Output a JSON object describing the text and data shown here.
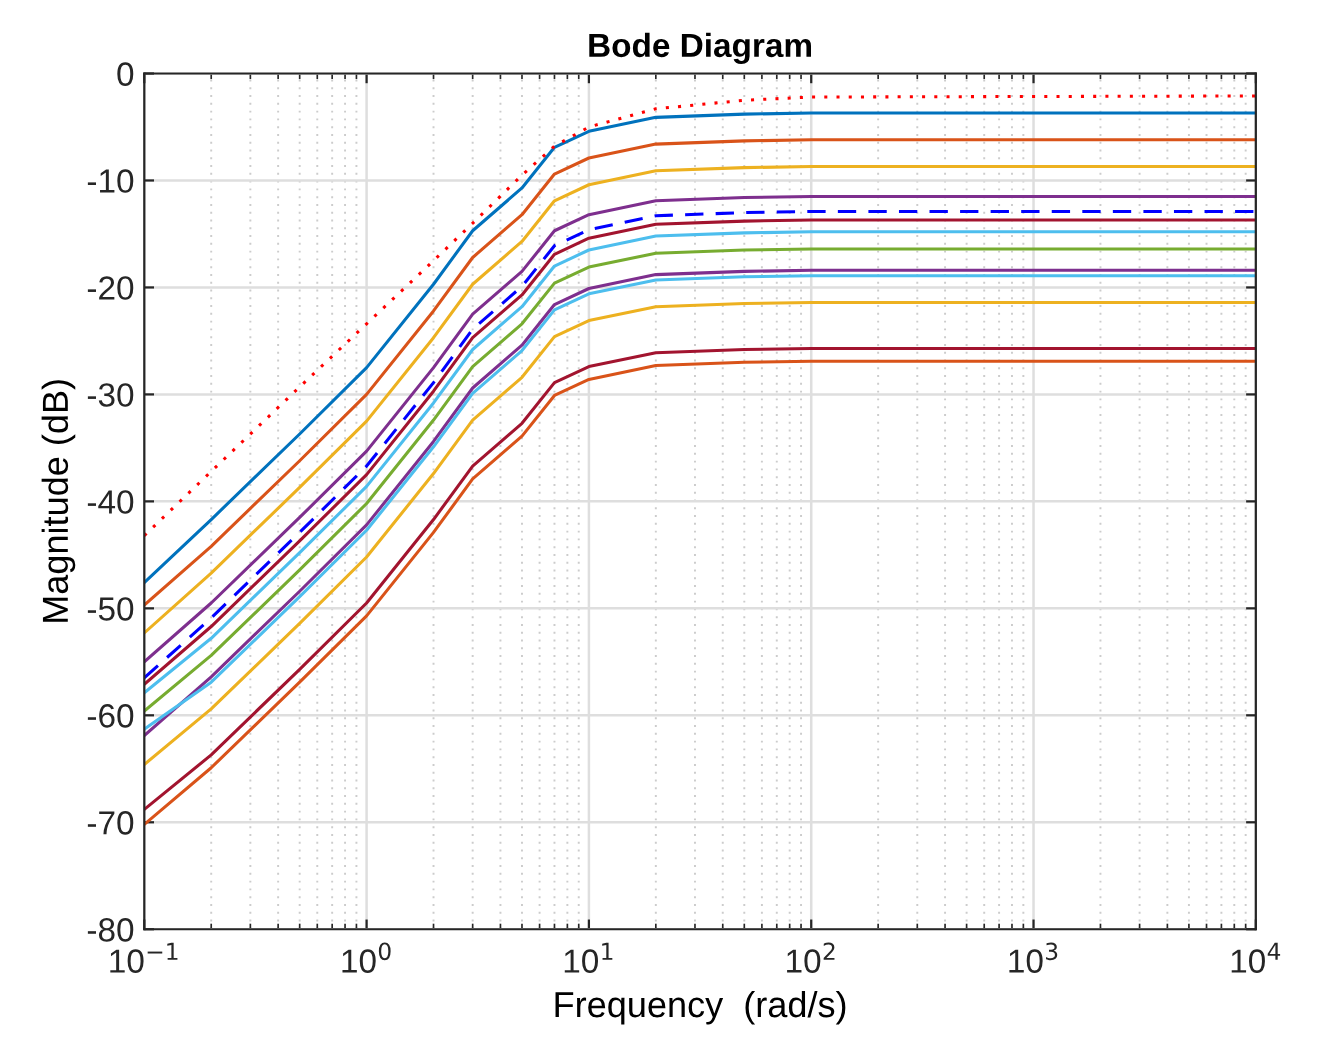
{
  "chart_data": {
    "type": "line",
    "title": "Bode Diagram",
    "xlabel": "Frequency  (rad/s)",
    "ylabel": "Magnitude (dB)",
    "log": "x",
    "grid": true,
    "marker": "none",
    "x": [
      0.1,
      0.2,
      0.5,
      1,
      2,
      3,
      5,
      7,
      10,
      20,
      50,
      100,
      10000
    ],
    "xlim": [
      0.1,
      10000
    ],
    "xticks": [
      {
        "value": 0.1,
        "label": "10$^{−1}$"
      },
      {
        "value": 1,
        "label": "10$^{0}$"
      },
      {
        "value": 10,
        "label": "10$^{1}$"
      },
      {
        "value": 100,
        "label": "10$^{2}$"
      },
      {
        "value": 1000,
        "label": "10$^{3}$"
      },
      {
        "value": 10000,
        "label": "10$^{4}$"
      }
    ],
    "ylim": [
      -80,
      0
    ],
    "yticks": [
      -80,
      -70,
      -60,
      -50,
      -40,
      -30,
      -20,
      -10,
      0
    ],
    "series": [
      {
        "color": "#0072bd",
        "line_style": "solid",
        "values": [
          -47.6,
          -41.7,
          -33.7,
          -27.5,
          -19.7,
          -14.7,
          -10.7,
          -6.9,
          -5.4,
          -4.1,
          -3.8,
          -3.7,
          -3.7
        ]
      },
      {
        "color": "#d95319",
        "line_style": "solid",
        "values": [
          -49.7,
          -44.2,
          -36.2,
          -30,
          -22.2,
          -17.2,
          -13.2,
          -9.4,
          -7.9,
          -6.6,
          -6.3,
          -6.2,
          -6.2
        ]
      },
      {
        "color": "#edb120",
        "line_style": "solid",
        "values": [
          -52.3,
          -46.7,
          -38.7,
          -32.5,
          -24.7,
          -19.7,
          -15.7,
          -11.9,
          -10.4,
          -9.1,
          -8.8,
          -8.7,
          -8.7
        ]
      },
      {
        "color": "#7e2f8e",
        "line_style": "solid",
        "values": [
          -55,
          -49.5,
          -41.5,
          -35.3,
          -27.5,
          -22.5,
          -18.5,
          -14.7,
          -13.2,
          -11.9,
          -11.6,
          -11.5,
          -11.5
        ]
      },
      {
        "color": "#a2142f",
        "line_style": "solid",
        "values": [
          -57.1,
          -51.7,
          -43.7,
          -37.5,
          -29.7,
          -24.7,
          -20.7,
          -16.9,
          -15.4,
          -14.1,
          -13.8,
          -13.7,
          -13.7
        ]
      },
      {
        "color": "#4dbeee",
        "line_style": "solid",
        "values": [
          -57.9,
          -52.8,
          -44.8,
          -38.6,
          -30.8,
          -25.8,
          -21.8,
          -18,
          -16.5,
          -15.2,
          -14.9,
          -14.8,
          -14.8
        ]
      },
      {
        "color": "#77ac30",
        "line_style": "solid",
        "values": [
          -59.6,
          -54.4,
          -46.4,
          -40.2,
          -32.4,
          -27.4,
          -23.4,
          -19.6,
          -18.1,
          -16.8,
          -16.5,
          -16.4,
          -16.4
        ]
      },
      {
        "color": "#7e2f8e",
        "line_style": "solid",
        "values": [
          -61.9,
          -56.4,
          -48.4,
          -42.2,
          -34.4,
          -29.4,
          -25.4,
          -21.6,
          -20.1,
          -18.8,
          -18.5,
          -18.4,
          -18.4
        ]
      },
      {
        "color": "#4dbeee",
        "line_style": "solid",
        "values": [
          -61.3,
          -56.9,
          -48.9,
          -42.7,
          -34.9,
          -29.9,
          -25.9,
          -22.1,
          -20.6,
          -19.3,
          -19,
          -18.9,
          -18.9
        ]
      },
      {
        "color": "#edb120",
        "line_style": "solid",
        "values": [
          -64.6,
          -59.4,
          -51.4,
          -45.2,
          -37.4,
          -32.4,
          -28.4,
          -24.6,
          -23.1,
          -21.8,
          -21.5,
          -21.4,
          -21.4
        ]
      },
      {
        "color": "#a2142f",
        "line_style": "solid",
        "values": [
          -68.8,
          -63.7,
          -55.7,
          -49.5,
          -41.7,
          -36.7,
          -32.7,
          -28.9,
          -27.4,
          -26.1,
          -25.8,
          -25.7,
          -25.7
        ]
      },
      {
        "color": "#d95319",
        "line_style": "solid",
        "values": [
          -70.2,
          -64.9,
          -56.9,
          -50.7,
          -42.9,
          -37.9,
          -33.9,
          -30.1,
          -28.6,
          -27.3,
          -27,
          -26.9,
          -26.9
        ]
      },
      {
        "color": "#0000ff",
        "line_style": "dashed",
        "values": [
          -56.5,
          -50.9,
          -42.9,
          -36.7,
          -28.9,
          -23.9,
          -19.9,
          -16.1,
          -14.6,
          -13.3,
          -13,
          -12.9,
          -12.9
        ]
      },
      {
        "color": "#ff0000",
        "line_style": "dotted",
        "values": [
          -43.2,
          -37.2,
          -29.3,
          -23.4,
          -17.5,
          -14,
          -9.5,
          -6.8,
          -5,
          -3.3,
          -2.5,
          -2.2,
          -2.1
        ]
      }
    ]
  }
}
